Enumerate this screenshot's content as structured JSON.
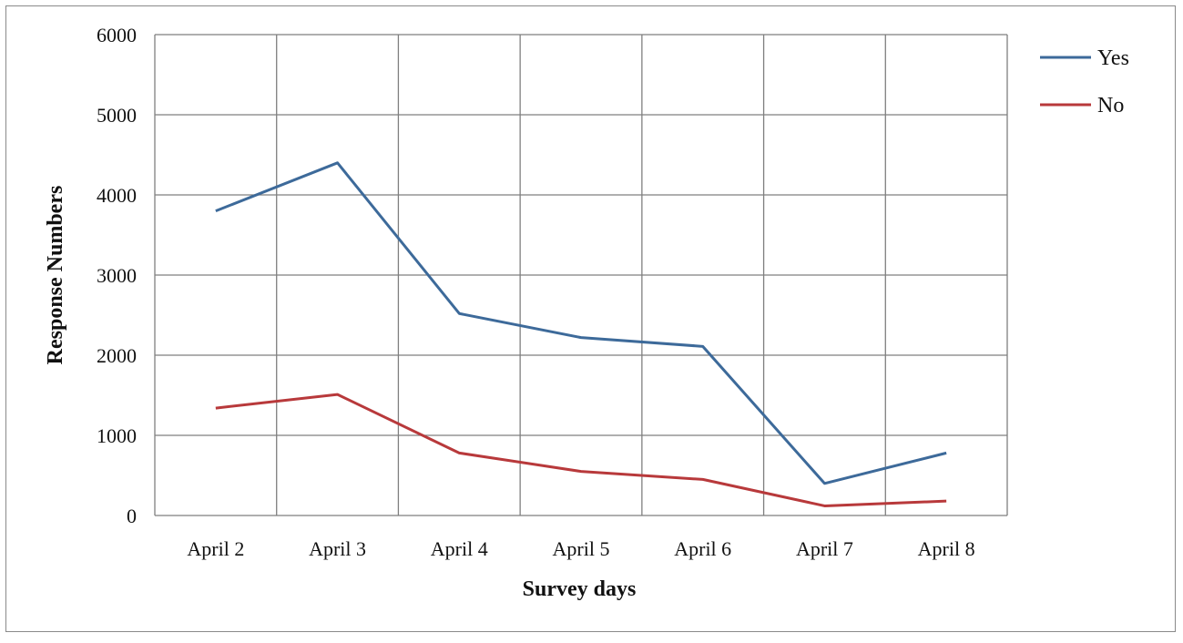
{
  "chart_data": {
    "type": "line",
    "title": "",
    "xlabel": "Survey days",
    "ylabel": "Response Numbers",
    "categories": [
      "April 2",
      "April 3",
      "April 4",
      "April 5",
      "April 6",
      "April 7",
      "April 8"
    ],
    "ylim": [
      0,
      6000
    ],
    "yticks": [
      0,
      1000,
      2000,
      3000,
      4000,
      5000,
      6000
    ],
    "ytick_labels": [
      "0",
      "1000",
      "2000",
      "3000",
      "4000",
      "5000",
      "6000"
    ],
    "grid": true,
    "legend_position": "top-right",
    "series": [
      {
        "name": "Yes",
        "color": "#3d6a9a",
        "values": [
          3800,
          4400,
          2520,
          2220,
          2110,
          400,
          780
        ]
      },
      {
        "name": "No",
        "color": "#b8393b",
        "values": [
          1340,
          1510,
          780,
          550,
          450,
          120,
          180
        ]
      }
    ]
  }
}
